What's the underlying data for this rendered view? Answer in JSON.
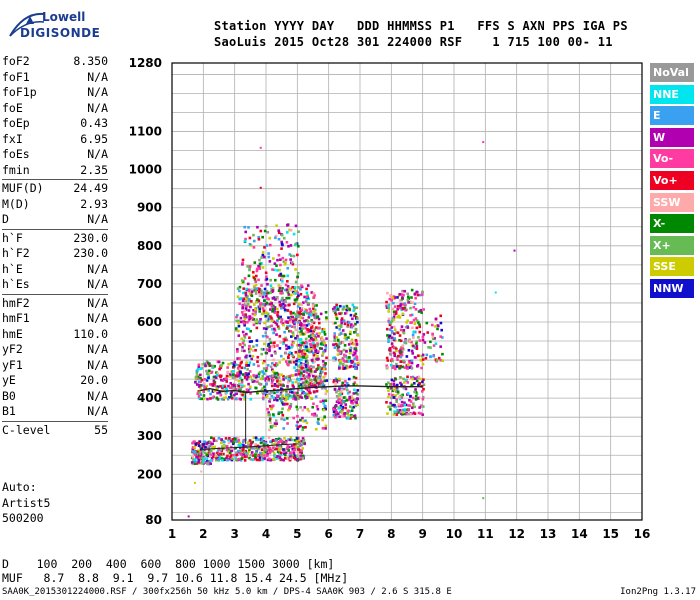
{
  "logo": {
    "line1": "Lowell",
    "line2": "DIGISONDE"
  },
  "header": {
    "line1": "Station YYYY DAY   DDD HHMMSS P1   FFS S AXN PPS IGA PS",
    "line2": "SaoLuis 2015 Oct28 301 224000 RSF    1 715 100 00- 11"
  },
  "params": {
    "group1": [
      {
        "k": "foF2",
        "v": "8.350"
      },
      {
        "k": "foF1",
        "v": "N/A"
      },
      {
        "k": "foF1p",
        "v": "N/A"
      },
      {
        "k": "foE",
        "v": "N/A"
      },
      {
        "k": "foEp",
        "v": "0.43"
      },
      {
        "k": "fxI",
        "v": "6.95"
      },
      {
        "k": "foEs",
        "v": "N/A"
      },
      {
        "k": "fmin",
        "v": "2.35"
      }
    ],
    "group2": [
      {
        "k": "MUF(D)",
        "v": "24.49"
      },
      {
        "k": "M(D)",
        "v": "2.93"
      },
      {
        "k": "D",
        "v": "N/A"
      }
    ],
    "group3": [
      {
        "k": "h`F",
        "v": "230.0"
      },
      {
        "k": "h`F2",
        "v": "230.0"
      },
      {
        "k": "h`E",
        "v": "N/A"
      },
      {
        "k": "h`Es",
        "v": "N/A"
      }
    ],
    "group4": [
      {
        "k": "hmF2",
        "v": "N/A"
      },
      {
        "k": "hmF1",
        "v": "N/A"
      },
      {
        "k": "hmE",
        "v": "110.0"
      },
      {
        "k": "yF2",
        "v": "N/A"
      },
      {
        "k": "yF1",
        "v": "N/A"
      },
      {
        "k": "yE",
        "v": "20.0"
      },
      {
        "k": "B0",
        "v": "N/A"
      },
      {
        "k": "B1",
        "v": "N/A"
      }
    ],
    "group5": [
      {
        "k": "C-level",
        "v": "55"
      }
    ]
  },
  "misc": {
    "l1": "Auto:",
    "l2": "Artist5",
    "l3": "500200"
  },
  "legend": [
    {
      "label": "NoVal",
      "color": "#999999"
    },
    {
      "label": "NNE",
      "color": "#00e5ee"
    },
    {
      "label": "E",
      "color": "#3aa0f0"
    },
    {
      "label": "W",
      "color": "#b000b0"
    },
    {
      "label": "Vo-",
      "color": "#ff3aa0"
    },
    {
      "label": "Vo+",
      "color": "#ee0022"
    },
    {
      "label": "SSW",
      "color": "#ffaaaa"
    },
    {
      "label": "X-",
      "color": "#008800"
    },
    {
      "label": "X+",
      "color": "#66bb55"
    },
    {
      "label": "SSE",
      "color": "#cccc00"
    },
    {
      "label": "NNW",
      "color": "#1010cc"
    }
  ],
  "footer": {
    "line1": "D    100  200  400  600  800 1000 1500 3000 [km]",
    "line2": "MUF   8.7  8.8  9.1  9.7 10.6 11.8 15.4 24.5 [MHz]",
    "line3": "SAA0K_2015301224000.RSF / 300fx256h 50 kHz 5.0 km / DPS-4 SAA0K 903 / 2.6 S 315.8 E",
    "version": "Ion2Png 1.3.17"
  },
  "chart_data": {
    "type": "scatter",
    "xlim": [
      1,
      16
    ],
    "ylim": [
      80,
      1280
    ],
    "xticks": [
      1,
      2,
      3,
      4,
      5,
      6,
      7,
      8,
      9,
      10,
      11,
      12,
      13,
      14,
      15,
      16
    ],
    "yticks": [
      80,
      200,
      300,
      400,
      500,
      600,
      700,
      800,
      900,
      1000,
      1100,
      1280
    ],
    "grid": true,
    "legend_position": "right",
    "trace": [
      {
        "x": 1.9,
        "y": 420
      },
      {
        "x": 2.2,
        "y": 425
      },
      {
        "x": 2.6,
        "y": 418
      },
      {
        "x": 3.0,
        "y": 420
      },
      {
        "x": 3.4,
        "y": 415
      },
      {
        "x": 3.8,
        "y": 418
      },
      {
        "x": 4.2,
        "y": 420
      },
      {
        "x": 4.6,
        "y": 422
      },
      {
        "x": 5.0,
        "y": 425
      },
      {
        "x": 5.5,
        "y": 428
      },
      {
        "x": 6.0,
        "y": 430
      },
      {
        "x": 6.5,
        "y": 432
      },
      {
        "x": 7.0,
        "y": 432
      },
      {
        "x": 7.5,
        "y": 431
      },
      {
        "x": 8.0,
        "y": 430
      },
      {
        "x": 8.5,
        "y": 430
      },
      {
        "x": 9.0,
        "y": 430
      }
    ],
    "e_trace": [
      {
        "x": 1.9,
        "y": 265
      },
      {
        "x": 2.5,
        "y": 268
      },
      {
        "x": 3.0,
        "y": 270
      },
      {
        "x": 3.5,
        "y": 272
      },
      {
        "x": 4.0,
        "y": 275
      },
      {
        "x": 4.5,
        "y": 278
      },
      {
        "x": 5.0,
        "y": 280
      }
    ],
    "clusters": [
      {
        "x": [
          1.6,
          2.2
        ],
        "y": [
          230,
          290
        ],
        "n": 140
      },
      {
        "x": [
          2.2,
          5.2
        ],
        "y": [
          240,
          300
        ],
        "n": 420
      },
      {
        "x": [
          1.7,
          3.2
        ],
        "y": [
          400,
          500
        ],
        "n": 220
      },
      {
        "x": [
          3.0,
          5.6
        ],
        "y": [
          400,
          700
        ],
        "n": 700
      },
      {
        "x": [
          3.2,
          5.0
        ],
        "y": [
          600,
          860
        ],
        "n": 260
      },
      {
        "x": [
          5.0,
          5.9
        ],
        "y": [
          430,
          640
        ],
        "n": 260
      },
      {
        "x": [
          4.0,
          5.9
        ],
        "y": [
          320,
          460
        ],
        "n": 160
      },
      {
        "x": [
          6.1,
          6.9
        ],
        "y": [
          480,
          650
        ],
        "n": 200
      },
      {
        "x": [
          6.1,
          6.9
        ],
        "y": [
          350,
          460
        ],
        "n": 140
      },
      {
        "x": [
          7.8,
          9.0
        ],
        "y": [
          480,
          690
        ],
        "n": 260
      },
      {
        "x": [
          7.8,
          9.0
        ],
        "y": [
          360,
          460
        ],
        "n": 160
      },
      {
        "x": [
          9.0,
          9.6
        ],
        "y": [
          500,
          620
        ],
        "n": 40
      }
    ],
    "strays": [
      {
        "x": 10.9,
        "y": 1075
      },
      {
        "x": 11.9,
        "y": 790
      },
      {
        "x": 11.3,
        "y": 680
      },
      {
        "x": 10.9,
        "y": 140
      },
      {
        "x": 3.8,
        "y": 955
      },
      {
        "x": 3.8,
        "y": 1060
      },
      {
        "x": 1.9,
        "y": 210
      },
      {
        "x": 1.7,
        "y": 180
      },
      {
        "x": 1.5,
        "y": 92
      }
    ]
  }
}
